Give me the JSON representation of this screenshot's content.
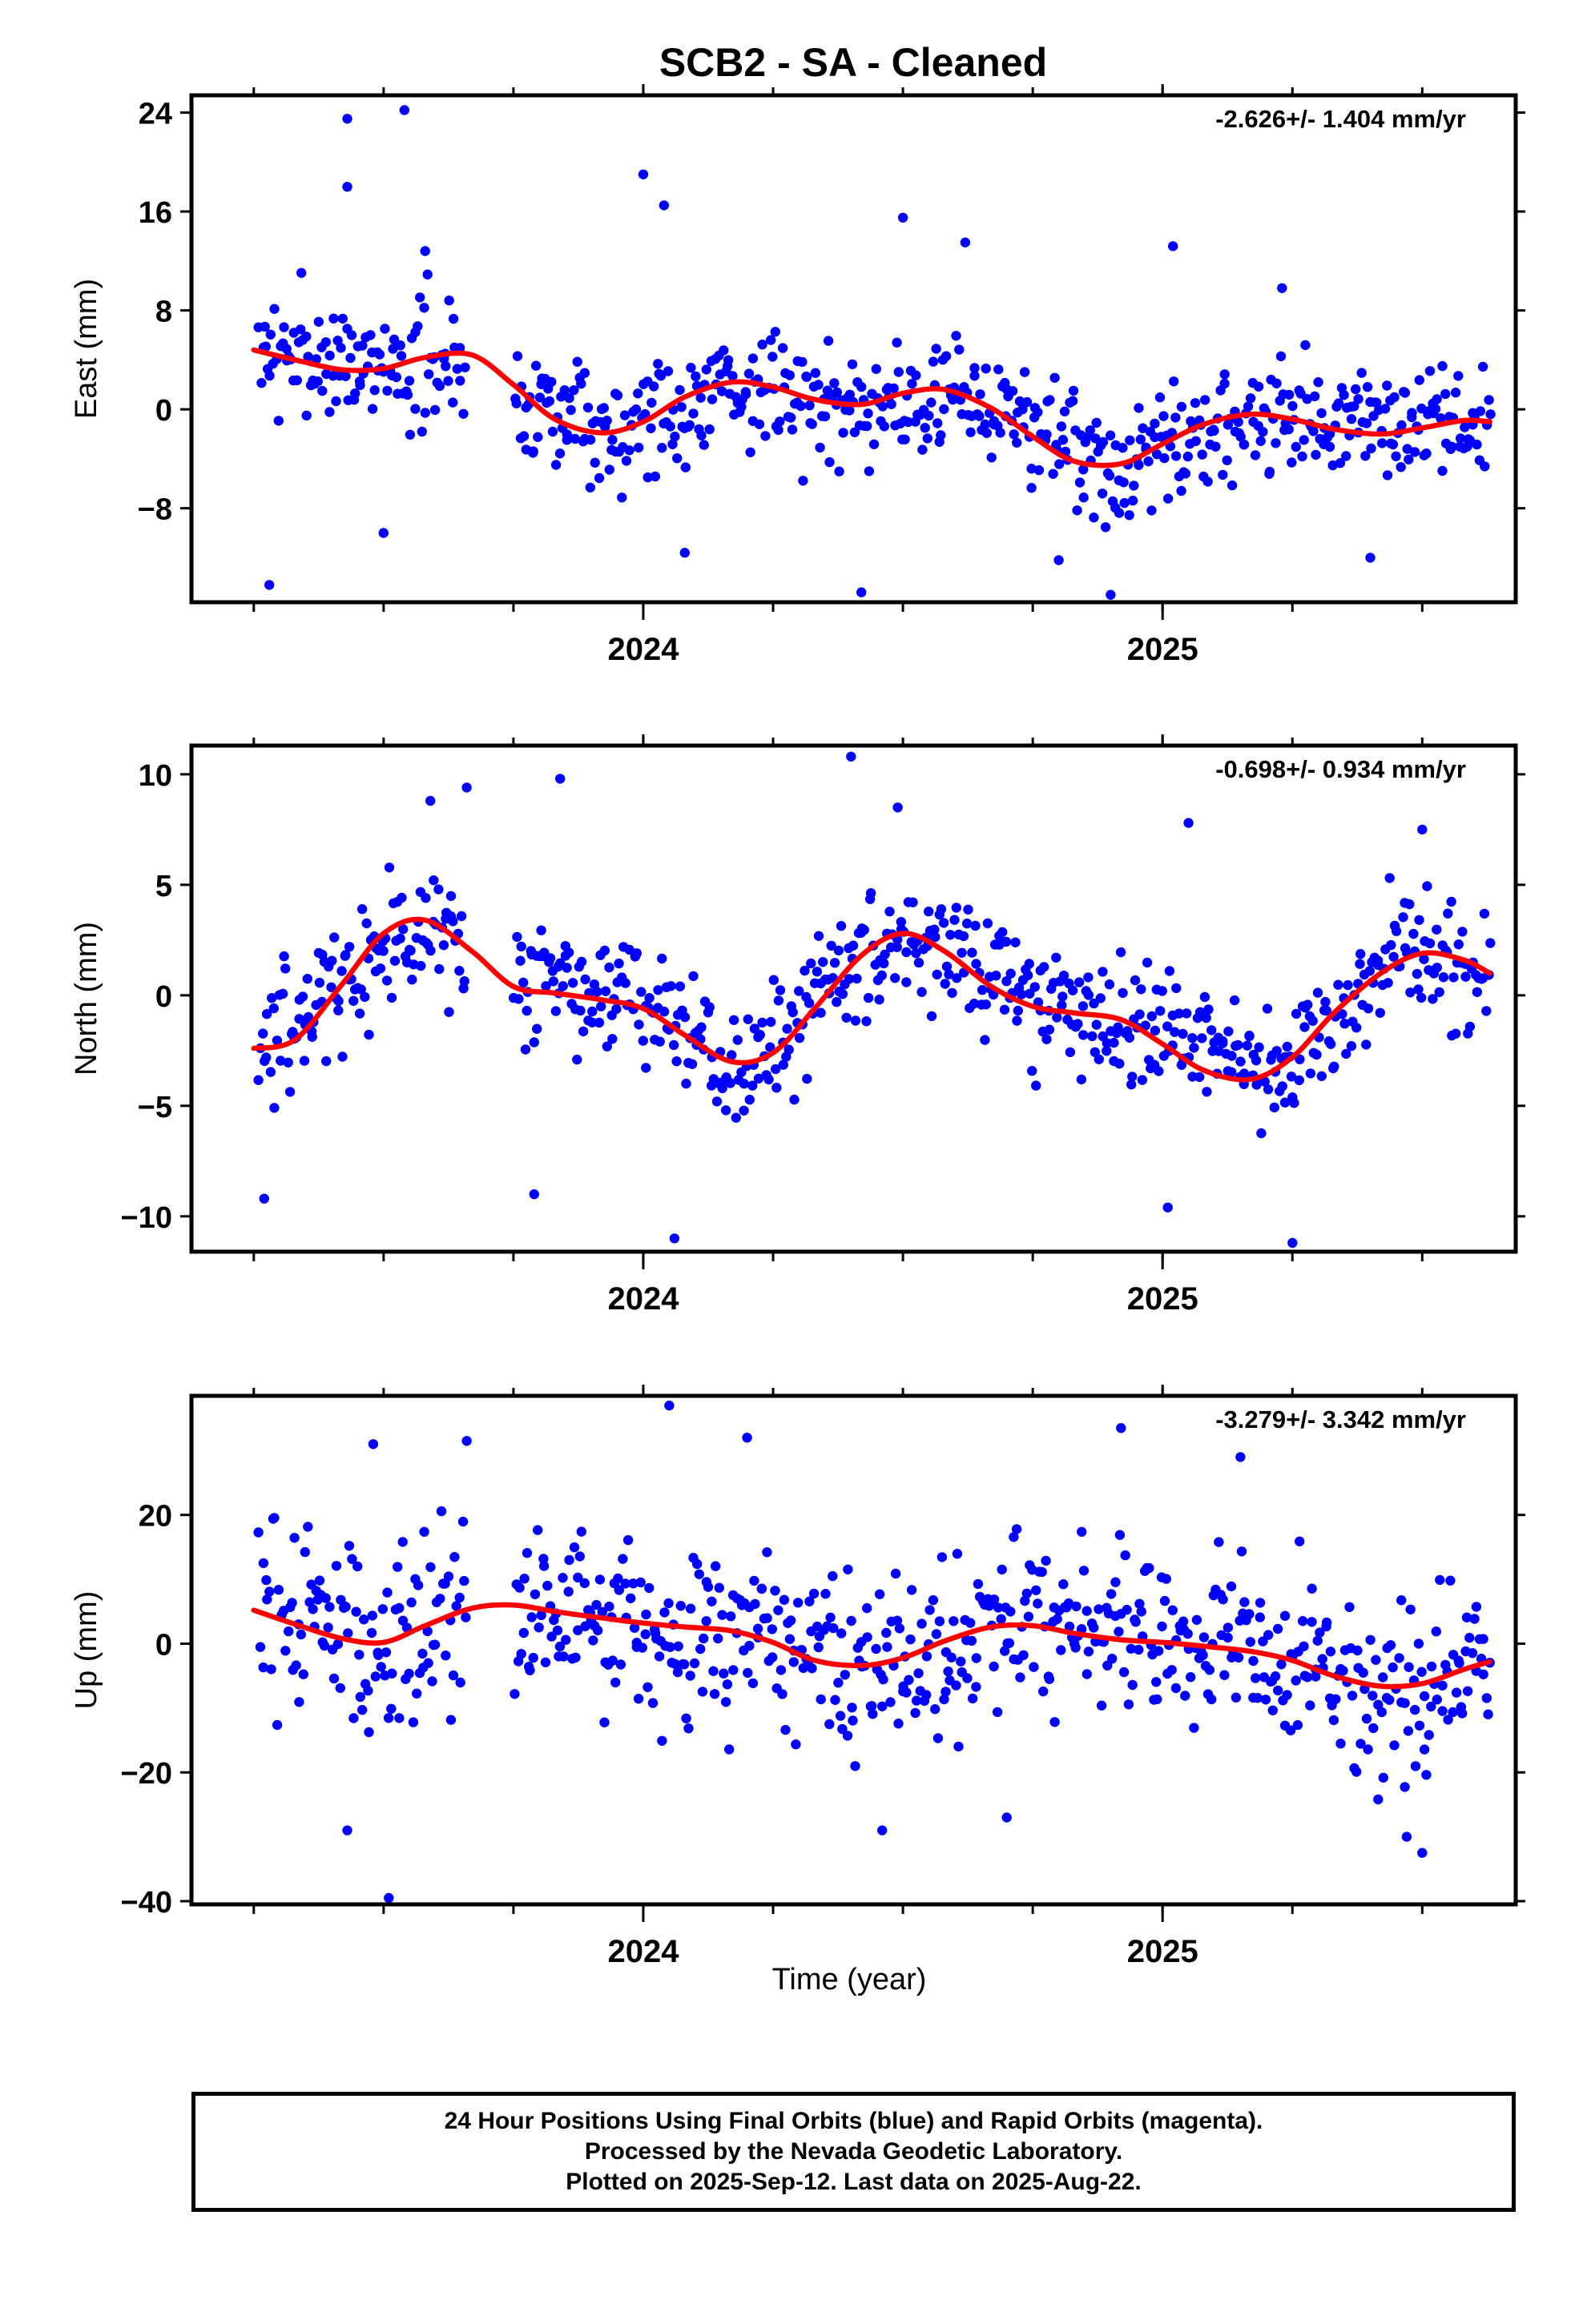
{
  "figure": {
    "title": "SCB2  - SA - Cleaned",
    "xlabel": "Time (year)",
    "x_tick_labels": [
      "2024",
      "2025"
    ]
  },
  "footer": {
    "line1": "24 Hour Positions Using Final Orbits (blue) and Rapid Orbits (magenta).",
    "line2": "Processed by the Nevada Geodetic Laboratory.",
    "line3": "Plotted on 2025-Sep-12. Last data on 2025-Aug-22."
  },
  "colors": {
    "final_orbits": "#0000ff",
    "fit": "#ff0000",
    "axes": "#000000"
  },
  "chart_data": [
    {
      "type": "scatter",
      "component": "east",
      "ylabel": "East (mm)",
      "annotation": "-2.626+/- 1.404 mm/yr",
      "xlim": [
        2023.13,
        2025.68
      ],
      "ylim": [
        -15.6,
        25.4
      ],
      "y_ticks": [
        -8,
        0,
        8,
        16,
        24
      ],
      "x_major_ticks": [
        2024,
        2025
      ],
      "x_minor_step": 0.25,
      "series": [
        {
          "type": "line",
          "x": [
            2023.25,
            2023.33,
            2023.42,
            2023.5,
            2023.58,
            2023.67,
            2023.75,
            2023.83,
            2023.92,
            2024.0,
            2024.08,
            2024.17,
            2024.25,
            2024.33,
            2024.42,
            2024.5,
            2024.58,
            2024.67,
            2024.75,
            2024.83,
            2024.92,
            2025.0,
            2025.08,
            2025.17,
            2025.25,
            2025.33,
            2025.42,
            2025.5,
            2025.58,
            2025.63
          ],
          "y": [
            4.8,
            4.0,
            3.2,
            3.3,
            4.2,
            4.4,
            2.0,
            -0.8,
            -1.9,
            -1.0,
            1.0,
            2.2,
            1.8,
            0.8,
            0.4,
            1.3,
            1.6,
            0.1,
            -2.2,
            -4.2,
            -4.4,
            -2.8,
            -1.2,
            -0.4,
            -0.8,
            -1.6,
            -2.0,
            -1.5,
            -0.9,
            -1.0
          ]
        }
      ],
      "scatter": {
        "x_start": 2023.26,
        "x_end": 2025.63,
        "n": 690,
        "gap": [
          2023.66,
          2023.75
        ],
        "baseline": {
          "x": [
            2023.25,
            2023.5,
            2023.67,
            2023.9,
            2024.15,
            2024.4,
            2024.6,
            2024.92,
            2025.2,
            2025.45,
            2025.63
          ],
          "y": [
            4.5,
            3.5,
            4.2,
            -1.8,
            2.0,
            0.5,
            1.5,
            -4.5,
            -0.5,
            -2.0,
            -1.0
          ]
        },
        "sigma": 3.6,
        "seed": 7,
        "outliers": [
          [
            2023.28,
            -14.2
          ],
          [
            2023.43,
            23.5
          ],
          [
            2023.54,
            24.2
          ],
          [
            2023.43,
            18.0
          ],
          [
            2023.5,
            -10.0
          ],
          [
            2023.58,
            12.8
          ],
          [
            2024.0,
            19.0
          ],
          [
            2024.04,
            16.5
          ],
          [
            2024.08,
            -11.6
          ],
          [
            2024.42,
            -14.8
          ],
          [
            2024.5,
            15.5
          ],
          [
            2024.62,
            13.5
          ],
          [
            2024.8,
            -12.2
          ],
          [
            2024.9,
            -15.0
          ],
          [
            2025.02,
            13.2
          ],
          [
            2025.4,
            -12.0
          ],
          [
            2025.23,
            9.8
          ]
        ]
      }
    },
    {
      "type": "scatter",
      "component": "north",
      "ylabel": "North (mm)",
      "annotation": "-0.698+/- 0.934 mm/yr",
      "xlim": [
        2023.13,
        2025.68
      ],
      "ylim": [
        -11.6,
        11.3
      ],
      "y_ticks": [
        -10,
        -5,
        0,
        5,
        10
      ],
      "x_major_ticks": [
        2024,
        2025
      ],
      "x_minor_step": 0.25,
      "series": [
        {
          "type": "line",
          "x": [
            2023.25,
            2023.33,
            2023.42,
            2023.5,
            2023.58,
            2023.67,
            2023.75,
            2023.83,
            2023.92,
            2024.0,
            2024.08,
            2024.17,
            2024.25,
            2024.33,
            2024.42,
            2024.5,
            2024.58,
            2024.67,
            2024.75,
            2024.83,
            2024.92,
            2025.0,
            2025.08,
            2025.17,
            2025.25,
            2025.33,
            2025.42,
            2025.5,
            2025.58,
            2025.63
          ],
          "y": [
            -2.4,
            -2.0,
            0.5,
            2.8,
            3.4,
            2.0,
            0.4,
            0.1,
            -0.2,
            -0.6,
            -1.8,
            -3.0,
            -2.6,
            -0.6,
            1.8,
            2.8,
            2.0,
            0.4,
            -0.5,
            -0.8,
            -1.1,
            -2.2,
            -3.4,
            -3.8,
            -2.8,
            -0.8,
            1.0,
            1.9,
            1.6,
            1.0
          ]
        }
      ],
      "scatter": {
        "x_start": 2023.26,
        "x_end": 2025.63,
        "n": 690,
        "gap": [
          2023.66,
          2023.75
        ],
        "baseline": {
          "x": [
            2023.25,
            2023.58,
            2023.8,
            2024.0,
            2024.2,
            2024.5,
            2024.75,
            2025.0,
            2025.2,
            2025.45,
            2025.63
          ],
          "y": [
            -2.5,
            3.5,
            0.2,
            -0.5,
            -3.2,
            2.8,
            -0.2,
            -1.5,
            -3.8,
            2.0,
            1.0
          ]
        },
        "sigma": 2.0,
        "seed": 13,
        "outliers": [
          [
            2023.27,
            -9.2
          ],
          [
            2023.59,
            8.8
          ],
          [
            2023.66,
            9.4
          ],
          [
            2023.84,
            9.8
          ],
          [
            2024.06,
            -11.0
          ],
          [
            2024.4,
            10.8
          ],
          [
            2024.49,
            8.5
          ],
          [
            2023.79,
            -9.0
          ],
          [
            2025.01,
            -9.6
          ],
          [
            2025.25,
            -11.2
          ],
          [
            2025.05,
            7.8
          ],
          [
            2025.5,
            7.5
          ]
        ]
      }
    },
    {
      "type": "scatter",
      "component": "up",
      "ylabel": "Up (mm)",
      "annotation": "-3.279+/- 3.342 mm/yr",
      "xlim": [
        2023.13,
        2025.68
      ],
      "ylim": [
        -40.5,
        38.5
      ],
      "y_ticks": [
        -40,
        -20,
        0,
        20
      ],
      "x_major_ticks": [
        2024,
        2025
      ],
      "x_minor_step": 0.25,
      "series": [
        {
          "type": "line",
          "x": [
            2023.25,
            2023.33,
            2023.42,
            2023.5,
            2023.58,
            2023.67,
            2023.75,
            2023.83,
            2023.92,
            2024.0,
            2024.08,
            2024.17,
            2024.25,
            2024.33,
            2024.42,
            2024.5,
            2024.58,
            2024.67,
            2024.75,
            2024.83,
            2024.92,
            2025.0,
            2025.08,
            2025.17,
            2025.25,
            2025.33,
            2025.42,
            2025.5,
            2025.58,
            2025.63
          ],
          "y": [
            5.2,
            3.0,
            0.8,
            0.2,
            2.8,
            5.5,
            6.0,
            5.0,
            4.0,
            3.2,
            2.6,
            2.0,
            0.2,
            -2.6,
            -3.4,
            -2.2,
            0.4,
            2.6,
            2.8,
            1.6,
            0.6,
            0.2,
            -0.4,
            -1.2,
            -2.6,
            -5.0,
            -6.6,
            -6.2,
            -4.0,
            -2.8
          ]
        }
      ],
      "scatter": {
        "x_start": 2023.26,
        "x_end": 2025.63,
        "n": 690,
        "gap": [
          2023.66,
          2023.75
        ],
        "baseline": {
          "x": [
            2023.25,
            2023.5,
            2023.75,
            2024.0,
            2024.25,
            2024.45,
            2024.75,
            2025.0,
            2025.25,
            2025.45,
            2025.63
          ],
          "y": [
            5.0,
            0.2,
            6.0,
            3.2,
            0.2,
            -3.4,
            2.8,
            0.2,
            -2.6,
            -6.6,
            -2.8
          ]
        },
        "sigma": 10.0,
        "seed": 29,
        "outliers": [
          [
            2023.48,
            31.0
          ],
          [
            2023.66,
            31.5
          ],
          [
            2024.05,
            37.0
          ],
          [
            2024.2,
            32.0
          ],
          [
            2024.92,
            33.5
          ],
          [
            2025.15,
            29.0
          ],
          [
            2023.51,
            -39.5
          ],
          [
            2023.43,
            -29.0
          ],
          [
            2024.46,
            -29.0
          ],
          [
            2025.5,
            -32.5
          ],
          [
            2025.47,
            -30.0
          ],
          [
            2024.7,
            -27.0
          ]
        ]
      }
    }
  ]
}
